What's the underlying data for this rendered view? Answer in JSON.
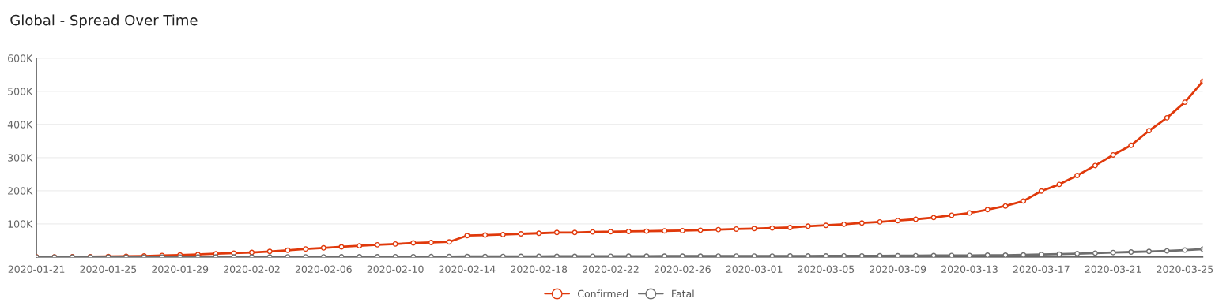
{
  "chart_data": {
    "type": "line",
    "title": "Global - Spread Over Time",
    "x": [
      "2020-01-21",
      "2020-01-22",
      "2020-01-23",
      "2020-01-24",
      "2020-01-25",
      "2020-01-26",
      "2020-01-27",
      "2020-01-28",
      "2020-01-29",
      "2020-01-30",
      "2020-01-31",
      "2020-02-01",
      "2020-02-02",
      "2020-02-03",
      "2020-02-04",
      "2020-02-05",
      "2020-02-06",
      "2020-02-07",
      "2020-02-08",
      "2020-02-09",
      "2020-02-10",
      "2020-02-11",
      "2020-02-12",
      "2020-02-13",
      "2020-02-14",
      "2020-02-15",
      "2020-02-16",
      "2020-02-17",
      "2020-02-18",
      "2020-02-19",
      "2020-02-20",
      "2020-02-21",
      "2020-02-22",
      "2020-02-23",
      "2020-02-24",
      "2020-02-25",
      "2020-02-26",
      "2020-02-27",
      "2020-02-28",
      "2020-02-29",
      "2020-03-01",
      "2020-03-02",
      "2020-03-03",
      "2020-03-04",
      "2020-03-05",
      "2020-03-06",
      "2020-03-07",
      "2020-03-08",
      "2020-03-09",
      "2020-03-10",
      "2020-03-11",
      "2020-03-12",
      "2020-03-13",
      "2020-03-14",
      "2020-03-15",
      "2020-03-16",
      "2020-03-17",
      "2020-03-18",
      "2020-03-19",
      "2020-03-20",
      "2020-03-21",
      "2020-03-22",
      "2020-03-23",
      "2020-03-24",
      "2020-03-25",
      "2020-03-26"
    ],
    "series": [
      {
        "name": "Confirmed",
        "color": "#e0390b",
        "values": [
          600,
          600,
          800,
          1200,
          1600,
          2400,
          3200,
          4700,
          6300,
          7900,
          10000,
          12000,
          14000,
          17000,
          20500,
          24400,
          27600,
          30800,
          34000,
          37000,
          39400,
          42600,
          44000,
          45700,
          64700,
          66200,
          67800,
          70000,
          71800,
          74000,
          74000,
          75700,
          76500,
          77300,
          78000,
          78900,
          79700,
          81000,
          82800,
          84400,
          86000,
          87500,
          89000,
          93000,
          95600,
          98800,
          102800,
          106000,
          110000,
          114000,
          119000,
          126000,
          133000,
          143000,
          154000,
          169000,
          199000,
          219000,
          246000,
          276000,
          308000,
          337000,
          381000,
          420000,
          467000,
          530000
        ]
      },
      {
        "name": "Fatal",
        "color": "#6e6e6e",
        "values": [
          17,
          18,
          26,
          42,
          56,
          82,
          131,
          133,
          171,
          213,
          259,
          362,
          426,
          492,
          564,
          634,
          719,
          806,
          906,
          1013,
          1113,
          1118,
          1371,
          1523,
          1666,
          1770,
          1868,
          2007,
          2122,
          2247,
          2251,
          2458,
          2469,
          2629,
          2708,
          2770,
          2814,
          2872,
          2941,
          2996,
          3000,
          3100,
          3200,
          3300,
          3400,
          3500,
          3600,
          3800,
          4000,
          4300,
          4600,
          4700,
          4800,
          5600,
          5600,
          6400,
          8000,
          8800,
          10400,
          12000,
          13700,
          15300,
          16900,
          18500,
          21000,
          24000
        ]
      }
    ],
    "xlim": [
      "2020-01-21",
      "2020-03-26"
    ],
    "xticks": [
      "2020-01-21",
      "2020-01-25",
      "2020-01-29",
      "2020-02-02",
      "2020-02-06",
      "2020-02-10",
      "2020-02-14",
      "2020-02-18",
      "2020-02-22",
      "2020-02-26",
      "2020-03-01",
      "2020-03-05",
      "2020-03-09",
      "2020-03-13",
      "2020-03-17",
      "2020-03-21",
      "2020-03-25"
    ],
    "ylim": [
      0,
      600000
    ],
    "yticks": [
      {
        "value": 100000,
        "label": "100K"
      },
      {
        "value": 200000,
        "label": "200K"
      },
      {
        "value": 300000,
        "label": "300K"
      },
      {
        "value": 400000,
        "label": "400K"
      },
      {
        "value": 500000,
        "label": "500K"
      },
      {
        "value": 600000,
        "label": "600K"
      }
    ],
    "grid": "y",
    "legend": "bottom",
    "marker": "circle",
    "line_style": "solid"
  }
}
